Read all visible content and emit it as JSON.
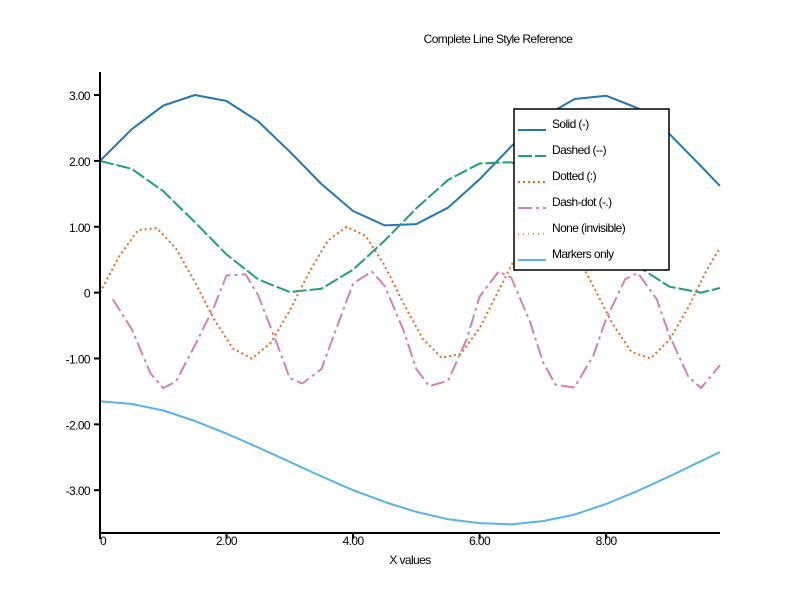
{
  "chart_data": {
    "type": "line",
    "title": "Complete Line Style Reference",
    "xlabel": "X values",
    "ylabel": "",
    "xlim": [
      0,
      9.8
    ],
    "ylim": [
      -3.65,
      3.35
    ],
    "x_ticks": [
      0,
      2,
      4,
      6,
      8
    ],
    "x_tick_labels": [
      "0",
      "2.00",
      "4.00",
      "6.00",
      "8.00"
    ],
    "y_ticks": [
      3,
      2,
      1,
      0,
      -1,
      -2,
      -3
    ],
    "y_tick_labels": [
      "3.00",
      "2.00",
      "1.00",
      "0",
      "-1.00",
      "-2.00",
      "-3.00"
    ],
    "legend_position": "top-right",
    "series": [
      {
        "name": "Solid (-)",
        "style": "solid",
        "color": "#1f77b4",
        "x": [
          0,
          0.5,
          1,
          1.5,
          2,
          2.5,
          3,
          3.5,
          4,
          4.5,
          5,
          5.5,
          6,
          6.5,
          7,
          7.5,
          8,
          8.5,
          9,
          9.5,
          9.8
        ],
        "y": [
          2.0,
          2.48,
          2.84,
          3.0,
          2.91,
          2.6,
          2.14,
          1.65,
          1.24,
          1.02,
          1.04,
          1.29,
          1.72,
          2.22,
          2.66,
          2.94,
          2.99,
          2.8,
          2.41,
          1.92,
          1.62
        ]
      },
      {
        "name": "Dashed (--)",
        "style": "dashed",
        "color": "#1aa37a",
        "x": [
          0,
          0.5,
          1,
          1.5,
          2,
          2.5,
          3,
          3.5,
          4,
          4.5,
          5,
          5.5,
          6,
          6.5,
          7,
          7.5,
          8,
          8.5,
          9,
          9.5,
          9.8
        ],
        "y": [
          2.0,
          1.88,
          1.54,
          1.07,
          0.58,
          0.2,
          0.01,
          0.06,
          0.35,
          0.79,
          1.28,
          1.71,
          1.96,
          1.98,
          1.75,
          1.35,
          0.85,
          0.4,
          0.09,
          0.0,
          0.07
        ]
      },
      {
        "name": "Dotted (:)",
        "style": "dotted",
        "color": "#e86b1a",
        "x": [
          0,
          0.3,
          0.6,
          0.9,
          1.2,
          1.5,
          1.8,
          2.1,
          2.4,
          2.7,
          3.0,
          3.3,
          3.6,
          3.9,
          4.2,
          4.5,
          4.8,
          5.1,
          5.4,
          5.7,
          6.0,
          6.3,
          6.6,
          6.9,
          7.2,
          7.5,
          7.8,
          8.1,
          8.4,
          8.7,
          9.0,
          9.3,
          9.6,
          9.8
        ],
        "y": [
          0.0,
          0.55,
          0.95,
          0.98,
          0.67,
          0.16,
          -0.4,
          -0.85,
          -1.0,
          -0.76,
          -0.27,
          0.3,
          0.79,
          1.0,
          0.86,
          0.41,
          -0.17,
          -0.7,
          -0.99,
          -0.93,
          -0.54,
          0.03,
          0.6,
          0.96,
          0.97,
          0.64,
          0.09,
          -0.47,
          -0.9,
          -1.0,
          -0.72,
          -0.22,
          0.36,
          0.68
        ]
      },
      {
        "name": "Dash-dot (-.)",
        "style": "dashdot",
        "color": "#d580b0",
        "x": [
          0.2,
          0.5,
          0.8,
          1.0,
          1.2,
          1.5,
          1.8,
          2.0,
          2.3,
          2.5,
          2.8,
          3.0,
          3.2,
          3.5,
          3.8,
          4.0,
          4.3,
          4.5,
          4.8,
          5.0,
          5.2,
          5.5,
          5.8,
          6.0,
          6.3,
          6.5,
          6.8,
          7.0,
          7.2,
          7.5,
          7.8,
          8.0,
          8.3,
          8.5,
          8.8,
          9.0,
          9.3,
          9.5,
          9.8
        ],
        "y": [
          -0.1,
          -0.55,
          -1.23,
          -1.45,
          -1.35,
          -0.8,
          -0.22,
          0.26,
          0.28,
          -0.04,
          -0.78,
          -1.3,
          -1.38,
          -1.16,
          -0.38,
          0.14,
          0.32,
          0.1,
          -0.58,
          -1.16,
          -1.42,
          -1.34,
          -0.7,
          -0.06,
          0.32,
          0.23,
          -0.45,
          -1.05,
          -1.4,
          -1.44,
          -0.95,
          -0.4,
          0.2,
          0.3,
          -0.1,
          -0.65,
          -1.28,
          -1.45,
          -1.1
        ]
      },
      {
        "name": "None (invisible)",
        "style": "none",
        "color": "#e86b1a",
        "x": [],
        "y": []
      },
      {
        "name": "Markers only",
        "style": "solid",
        "color": "#56b4e9",
        "x": [
          0,
          0.5,
          1,
          1.5,
          2,
          2.5,
          3,
          3.5,
          4,
          4.5,
          5,
          5.5,
          6,
          6.5,
          7,
          7.5,
          8,
          8.5,
          9,
          9.5,
          9.8
        ],
        "y": [
          -1.65,
          -1.69,
          -1.79,
          -1.95,
          -2.14,
          -2.35,
          -2.57,
          -2.79,
          -3.0,
          -3.18,
          -3.33,
          -3.44,
          -3.5,
          -3.52,
          -3.47,
          -3.37,
          -3.21,
          -3.01,
          -2.79,
          -2.56,
          -2.42
        ]
      }
    ]
  }
}
